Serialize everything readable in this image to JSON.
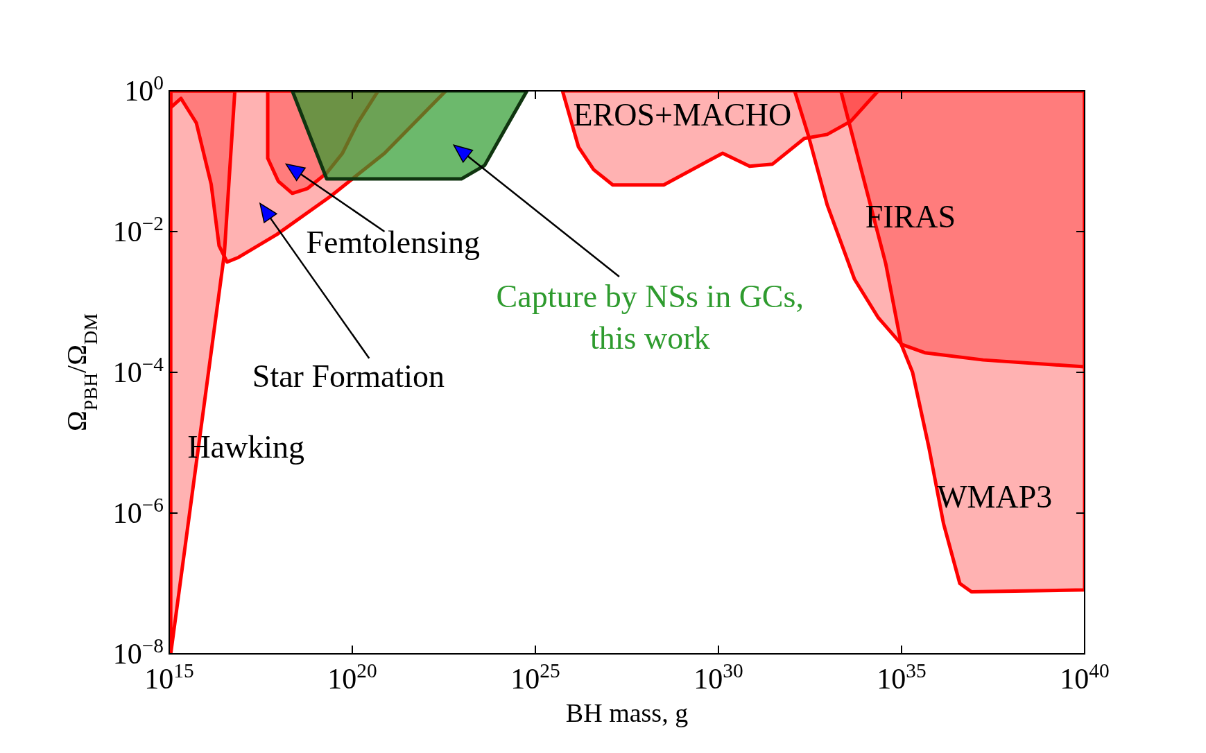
{
  "chart_data": {
    "type": "area",
    "xlabel": "BH mass, g",
    "ylabel": "Ω$_{PBH}$/Ω$_{DM}$",
    "log": "xy",
    "xlim": [
      1000000000000000.0,
      1e+40
    ],
    "ylim": [
      1e-08,
      1
    ],
    "xticks": [
      {
        "value": 1000000000000000.0,
        "label": "10$^{15}$"
      },
      {
        "value": 1e+20,
        "label": "10$^{20}$"
      },
      {
        "value": 1e+25,
        "label": "10$^{25}$"
      },
      {
        "value": 1e+30,
        "label": "10$^{30}$"
      },
      {
        "value": 1e+35,
        "label": "10$^{35}$"
      },
      {
        "value": 1e+40,
        "label": "10$^{40}$"
      }
    ],
    "yticks": [
      {
        "value": 1e-08,
        "label": "10$^{−8}$"
      },
      {
        "value": 1e-06,
        "label": "10$^{−6}$"
      },
      {
        "value": 0.0001,
        "label": "10$^{−4}$"
      },
      {
        "value": 0.01,
        "label": "10$^{−2}$"
      },
      {
        "value": 1,
        "label": "10$^{0}$"
      }
    ],
    "series": [
      {
        "name": "Hawking",
        "color": "#ff0000",
        "x": [
          1100000000000000.0,
          1100000000000000.0,
          3.2e+16,
          6.2e+16
        ],
        "values": [
          1,
          1e-08,
          0.0048,
          1
        ]
      },
      {
        "name": "Star Formation",
        "color": "#ff0000",
        "x": [
          1100000000000000.0,
          1100000000000000.0,
          2100000000000000.0,
          5500000000000000.0,
          1.4e+16,
          2.3e+16,
          3.8e+16,
          7.8e+16,
          8.7e+17,
          2.6e+19,
          7.6e+20,
          3.6e+22
        ],
        "values": [
          1,
          0.58,
          0.78,
          0.35,
          0.047,
          0.0063,
          0.0037,
          0.0043,
          0.0091,
          0.032,
          0.13,
          1
        ]
      },
      {
        "name": "Femtolensing",
        "color": "#ff0000",
        "x": [
          4.9e+17,
          4.9e+17,
          9.5e+17,
          2.3e+18,
          6e+18,
          2e+19,
          5.4e+19,
          1.4e+20,
          5.1e+20
        ],
        "values": [
          1,
          0.11,
          0.052,
          0.035,
          0.041,
          0.068,
          0.13,
          0.35,
          1
        ]
      },
      {
        "name": "EROS+MACHO",
        "color": "#ff0000",
        "x": [
          5.5e+25,
          1.5e+26,
          3.9e+26,
          1.3e+27,
          3.2e+28,
          1.3e+30,
          7.1e+30,
          3e+31,
          2.2e+32,
          9.3e+32,
          4.1e+33,
          2.3e+34
        ],
        "values": [
          1,
          0.16,
          0.076,
          0.046,
          0.046,
          0.13,
          0.085,
          0.091,
          0.21,
          0.24,
          0.37,
          1
        ]
      },
      {
        "name": "FIRAS",
        "color": "#ff0000",
        "x": [
          1.2e+32,
          2.8e+32,
          9.3e+32,
          5.2e+33,
          2.3e+34,
          1e+35,
          4.3e+35,
          1.7e+37,
          1e+40,
          1e+40
        ],
        "values": [
          1,
          0.24,
          0.024,
          0.0021,
          0.0006,
          0.00025,
          0.00019,
          0.00015,
          0.00012,
          1
        ]
      },
      {
        "name": "WMAP3",
        "color": "#ff0000",
        "x": [
          2.2e+33,
          8.5e+33,
          3.7e+34,
          9.8e+34,
          2e+35,
          5.5e+35,
          1.4e+36,
          3.9e+36,
          8.1e+36,
          1e+40,
          1e+40
        ],
        "values": [
          1,
          0.066,
          0.0035,
          0.00025,
          0.0001,
          8.9e-06,
          7.1e-07,
          1e-07,
          7.6e-08,
          8.1e-08,
          1
        ]
      },
      {
        "name": "Capture by NSs in GCs,\nthis work",
        "color": "#2e9b2e",
        "x": [
          2.3e+18,
          2e+19,
          9.5e+22,
          4.1e+23,
          1.4e+24,
          5.9e+24
        ],
        "values": [
          1,
          0.056,
          0.056,
          0.087,
          0.27,
          1
        ]
      }
    ]
  }
}
